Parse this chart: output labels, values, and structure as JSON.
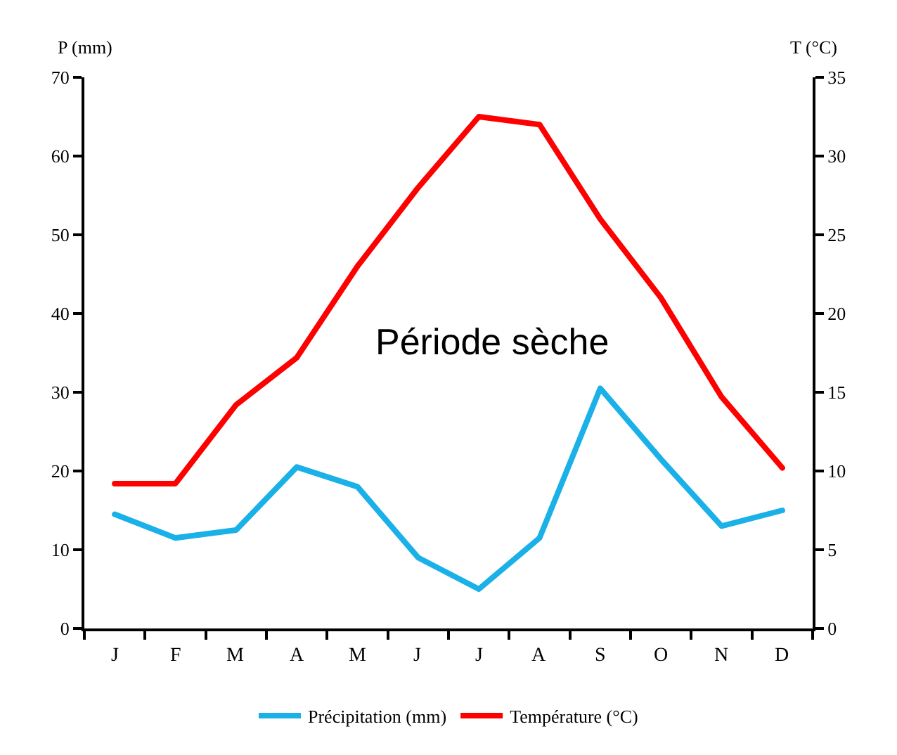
{
  "chart_data": {
    "type": "line",
    "categories": [
      "J",
      "F",
      "M",
      "A",
      "M",
      "J",
      "J",
      "A",
      "S",
      "O",
      "N",
      "D"
    ],
    "series": [
      {
        "name": "Précipitation (mm)",
        "color": "#1ab0e8",
        "values": [
          14.5,
          11.5,
          12.5,
          20.5,
          18,
          9,
          5,
          11.5,
          30.5,
          21.5,
          13,
          15
        ]
      },
      {
        "name": "Température (°C)",
        "color": "#ff0000",
        "axis": "y2",
        "values": [
          9.2,
          9.2,
          14.2,
          17.2,
          23,
          28,
          32.5,
          32,
          26,
          21,
          14.7,
          10.2
        ]
      }
    ],
    "ylabel": "P (mm)",
    "y2label": "T (°C)",
    "ylim": [
      0,
      70
    ],
    "yticks": [
      0,
      10,
      20,
      30,
      40,
      50,
      60,
      70
    ],
    "y2lim": [
      0,
      35
    ],
    "y2ticks": [
      0,
      5,
      10,
      15,
      20,
      25,
      30,
      35
    ],
    "annotations": [
      "Période sèche"
    ],
    "legend": "bottom",
    "marker": "none",
    "line_style": "solid"
  }
}
